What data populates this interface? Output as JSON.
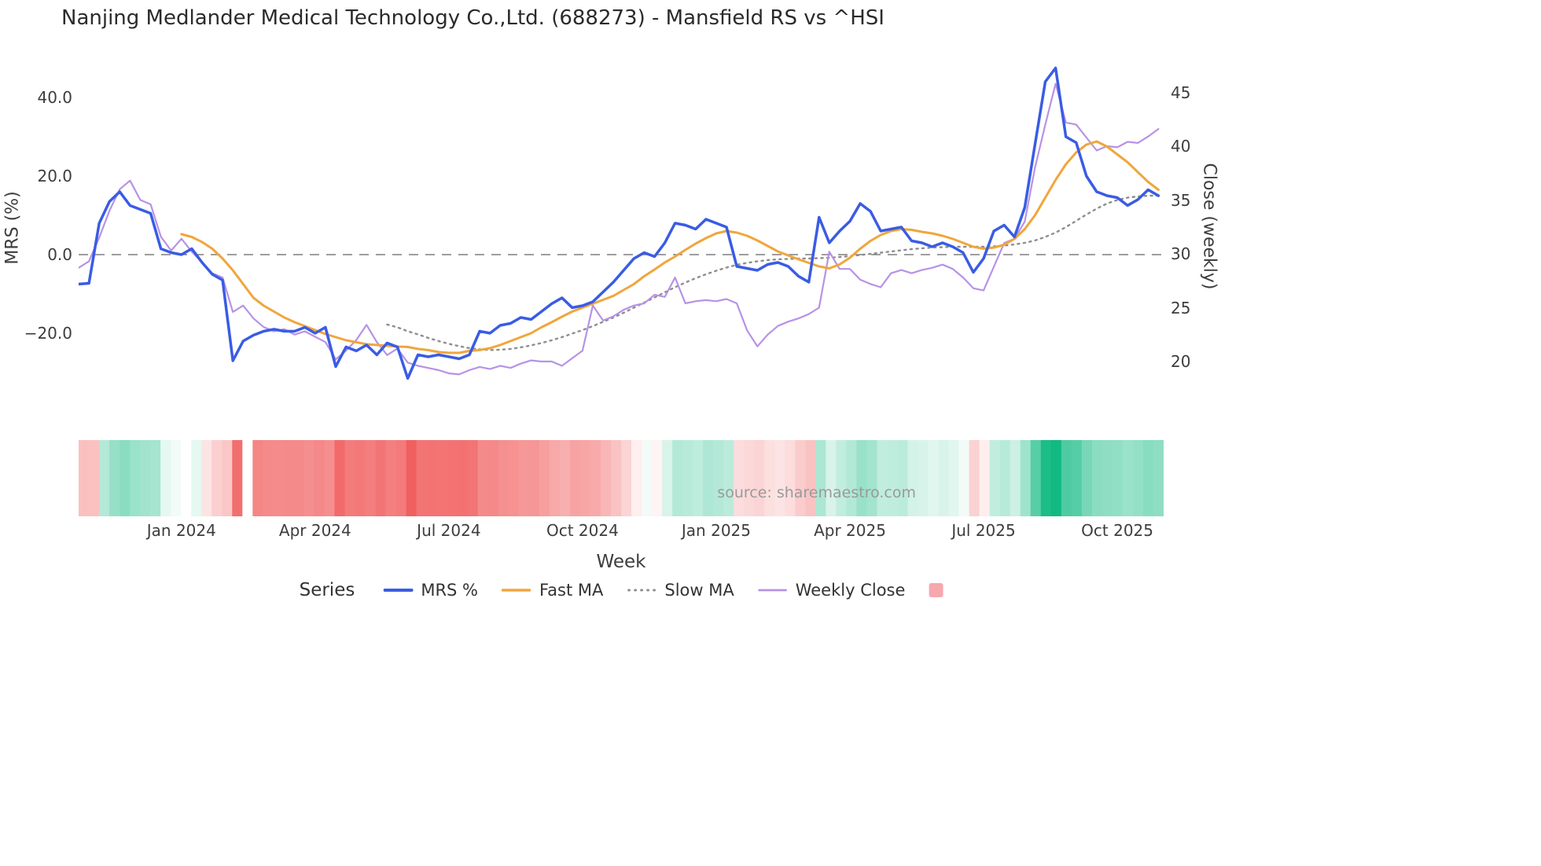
{
  "title": "Nanjing Medlander Medical Technology Co.,Ltd. (688273) - Mansfield RS vs ^HSI",
  "source": "source: sharemaestro.com",
  "chart_data": {
    "type": "line",
    "x_axis": {
      "label": "Week",
      "tick_labels": [
        "Jan 2024",
        "Apr 2024",
        "Jul 2024",
        "Oct 2024",
        "Jan 2025",
        "Apr 2025",
        "Jul 2025",
        "Oct 2025"
      ],
      "tick_week_indices": [
        10,
        23,
        36,
        49,
        62,
        75,
        88,
        101
      ],
      "n_weeks": 106
    },
    "y_left": {
      "label": "MRS (%)",
      "tick_values": [
        40,
        20,
        0,
        -20
      ],
      "tick_labels": [
        "40.0",
        "20.0",
        "0.0",
        "−20.0"
      ],
      "range": [
        -36,
        50
      ]
    },
    "y_right": {
      "label": "Close (weekly)",
      "tick_values": [
        45,
        40,
        35,
        30,
        25,
        20
      ],
      "tick_labels": [
        "45",
        "40",
        "35",
        "30",
        "25",
        "20"
      ],
      "range": [
        16.7,
        48.1
      ]
    },
    "zero_line_value": 0,
    "zero_line_color": "#7f7f7f",
    "series": [
      {
        "name": "MRS %",
        "axis": "left",
        "color": "#3a5ce4",
        "width": 3.5,
        "dash": "",
        "values": [
          -7.5,
          -7.3,
          8.0,
          13.5,
          16.0,
          12.5,
          11.5,
          10.5,
          1.5,
          0.5,
          0.0,
          1.5,
          -2.0,
          -5.0,
          -6.5,
          -27.0,
          -22.0,
          -20.5,
          -19.5,
          -19.0,
          -19.5,
          -19.5,
          -18.5,
          -20.0,
          -18.5,
          -28.5,
          -23.5,
          -24.5,
          -23.0,
          -25.5,
          -22.5,
          -23.5,
          -31.5,
          -25.5,
          -26.0,
          -25.5,
          -26.0,
          -26.5,
          -25.5,
          -19.5,
          -20.0,
          -18.0,
          -17.5,
          -16.0,
          -16.5,
          -14.5,
          -12.5,
          -11.0,
          -13.5,
          -13.0,
          -12.0,
          -9.5,
          -7.0,
          -4.0,
          -1.0,
          0.5,
          -0.5,
          3.0,
          8.0,
          7.5,
          6.5,
          9.0,
          8.0,
          7.0,
          -3.0,
          -3.5,
          -4.0,
          -2.5,
          -2.0,
          -3.0,
          -5.5,
          -7.0,
          9.5,
          3.0,
          6.0,
          8.5,
          13.0,
          11.0,
          6.0,
          6.5,
          7.0,
          3.5,
          3.0,
          2.0,
          3.0,
          2.0,
          0.5,
          -4.5,
          -1.0,
          6.0,
          7.5,
          4.5,
          12.0,
          28.0,
          44.0,
          47.5,
          30.0,
          28.5,
          20.0,
          16.0,
          15.0,
          14.5,
          12.5,
          14.0,
          16.5,
          15.0
        ]
      },
      {
        "name": "Fast MA",
        "axis": "left",
        "color": "#f0a63c",
        "width": 3,
        "dash": "",
        "values": [
          null,
          null,
          null,
          null,
          null,
          null,
          null,
          null,
          null,
          null,
          5.2,
          4.5,
          3.2,
          1.5,
          -1.0,
          -4.0,
          -7.5,
          -11.0,
          -13.0,
          -14.5,
          -16.0,
          -17.2,
          -18.2,
          -19.2,
          -20.2,
          -21.0,
          -21.8,
          -22.3,
          -22.8,
          -23.0,
          -23.2,
          -23.4,
          -23.5,
          -24.0,
          -24.3,
          -24.8,
          -25.0,
          -25.0,
          -24.5,
          -24.3,
          -23.8,
          -23.0,
          -22.0,
          -21.0,
          -20.0,
          -18.5,
          -17.2,
          -15.8,
          -14.5,
          -13.5,
          -12.5,
          -11.5,
          -10.5,
          -9.0,
          -7.5,
          -5.5,
          -3.8,
          -2.0,
          -0.5,
          1.2,
          2.8,
          4.2,
          5.4,
          6.0,
          5.6,
          4.8,
          3.6,
          2.2,
          0.8,
          -0.2,
          -1.2,
          -2.1,
          -3.0,
          -3.5,
          -2.5,
          -0.8,
          1.5,
          3.5,
          5.0,
          6.0,
          6.5,
          6.3,
          5.8,
          5.4,
          4.8,
          4.0,
          3.0,
          2.0,
          1.5,
          1.8,
          2.5,
          4.0,
          6.5,
          10.0,
          14.5,
          19.0,
          23.0,
          26.0,
          28.0,
          28.8,
          27.5,
          25.5,
          23.5,
          21.0,
          18.5,
          16.5
        ]
      },
      {
        "name": "Slow MA",
        "axis": "left",
        "color": "#8e8e8e",
        "width": 2.4,
        "dash": "2.2 5.4",
        "values": [
          null,
          null,
          null,
          null,
          null,
          null,
          null,
          null,
          null,
          null,
          null,
          null,
          null,
          null,
          null,
          null,
          null,
          null,
          null,
          null,
          null,
          null,
          null,
          null,
          null,
          null,
          null,
          null,
          null,
          null,
          -17.8,
          -18.5,
          -19.5,
          -20.3,
          -21.2,
          -22.0,
          -22.7,
          -23.3,
          -23.8,
          -24.1,
          -24.3,
          -24.2,
          -24.0,
          -23.6,
          -23.1,
          -22.5,
          -21.8,
          -21.0,
          -20.1,
          -19.2,
          -18.2,
          -17.1,
          -16.0,
          -14.8,
          -13.5,
          -12.2,
          -10.9,
          -9.6,
          -8.3,
          -7.1,
          -6.0,
          -5.0,
          -4.1,
          -3.3,
          -2.6,
          -2.1,
          -1.7,
          -1.4,
          -1.2,
          -1.1,
          -1.0,
          -1.0,
          -0.9,
          -0.8,
          -0.6,
          -0.4,
          -0.1,
          0.2,
          0.5,
          0.8,
          1.1,
          1.4,
          1.6,
          1.8,
          1.9,
          2.0,
          2.0,
          2.0,
          2.0,
          2.1,
          2.3,
          2.6,
          3.0,
          3.6,
          4.5,
          5.6,
          7.0,
          8.6,
          10.2,
          11.7,
          13.0,
          13.9,
          14.5,
          14.8,
          15.0,
          15.0
        ]
      },
      {
        "name": "Weekly Close",
        "axis": "right",
        "color": "#b793e6",
        "width": 2.2,
        "dash": "",
        "values": [
          28.7,
          29.3,
          31.5,
          34.0,
          36.0,
          36.8,
          35.0,
          34.6,
          31.6,
          30.3,
          31.4,
          30.2,
          29.2,
          28.2,
          27.8,
          24.6,
          25.2,
          24.0,
          23.2,
          22.8,
          23.0,
          22.5,
          22.8,
          22.3,
          21.8,
          20.2,
          21.0,
          22.0,
          23.4,
          21.8,
          20.6,
          21.2,
          19.9,
          19.6,
          19.4,
          19.2,
          18.9,
          18.8,
          19.2,
          19.5,
          19.3,
          19.6,
          19.4,
          19.8,
          20.1,
          20.0,
          20.0,
          19.6,
          20.3,
          21.0,
          25.2,
          23.8,
          24.2,
          24.8,
          25.2,
          25.4,
          26.2,
          26.0,
          27.8,
          25.4,
          25.6,
          25.7,
          25.6,
          25.8,
          25.4,
          22.9,
          21.4,
          22.5,
          23.3,
          23.7,
          24.0,
          24.4,
          25.0,
          30.2,
          28.6,
          28.6,
          27.6,
          27.2,
          26.9,
          28.2,
          28.5,
          28.2,
          28.5,
          28.7,
          29.0,
          28.6,
          27.8,
          26.8,
          26.6,
          28.8,
          31.0,
          31.4,
          33.0,
          38.0,
          42.0,
          45.8,
          42.2,
          42.0,
          40.8,
          39.6,
          40.0,
          39.9,
          40.4,
          40.3,
          40.9,
          41.6
        ]
      }
    ],
    "heatmap": {
      "source_series": "MRS %",
      "gap_weeks": [
        16
      ],
      "negative_color": "#f15e5e",
      "positive_color": "#10b981",
      "neg_max": 32,
      "pos_max": 48
    },
    "legend": {
      "title": "Series",
      "extra_swatch_color": "#f7a8ae"
    }
  }
}
